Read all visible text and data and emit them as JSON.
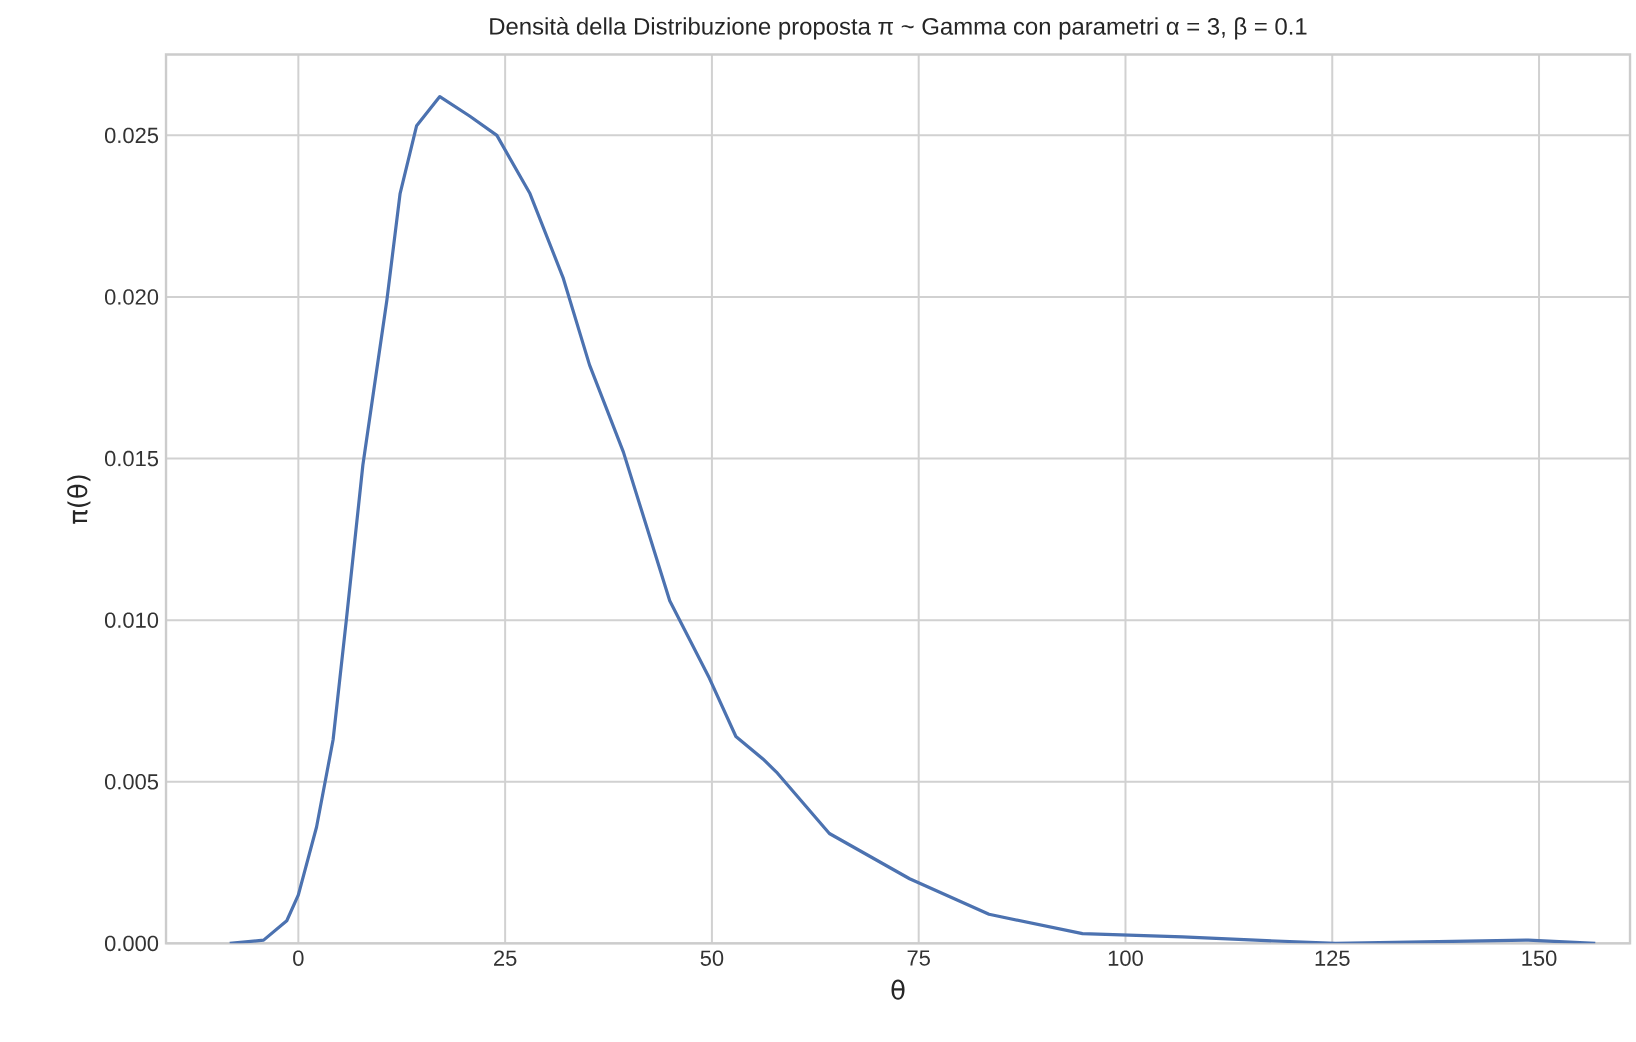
{
  "chart_data": {
    "type": "line",
    "title": "Densità della Distribuzione proposta π ~ Gamma con parametri α = 3, β = 0.1",
    "xlabel": "θ",
    "ylabel": "π(θ)",
    "series": [
      {
        "color": "#4c72b0",
        "x": [
          -8.3,
          -4.2,
          -1.4,
          0,
          2.2,
          4.2,
          5.8,
          7.8,
          10.7,
          12.3,
          14.3,
          17.1,
          20.7,
          24.0,
          28.0,
          32.0,
          35.2,
          39.3,
          44.9,
          49.7,
          52.9,
          56.2,
          57.8,
          64.2,
          73.9,
          83.5,
          94.8,
          106.9,
          115.7,
          125.4,
          148.7,
          156.8
        ],
        "values": [
          0,
          0.0001,
          0.0007,
          0.0015,
          0.0036,
          0.0063,
          0.01,
          0.0148,
          0.0199,
          0.0232,
          0.0253,
          0.0262,
          0.0256,
          0.025,
          0.0232,
          0.0206,
          0.0179,
          0.0152,
          0.0106,
          0.0082,
          0.0064,
          0.0057,
          0.0053,
          0.0034,
          0.002,
          0.0009,
          0.0003,
          0.0002,
          0.0001,
          0,
          0.0001,
          0
        ]
      }
    ],
    "xlim": [
      -16,
      161
    ],
    "ylim": [
      0,
      0.0275
    ],
    "xticks": [
      0,
      25,
      50,
      75,
      100,
      125,
      150
    ],
    "yticks": [
      {
        "value": 0,
        "label": "0.000"
      },
      {
        "value": 0.005,
        "label": "0.005"
      },
      {
        "value": 0.01,
        "label": "0.010"
      },
      {
        "value": 0.015,
        "label": "0.015"
      },
      {
        "value": 0.02,
        "label": "0.020"
      },
      {
        "value": 0.025,
        "label": "0.025"
      }
    ],
    "grid": true,
    "marker": "none",
    "line_style": "solid"
  }
}
